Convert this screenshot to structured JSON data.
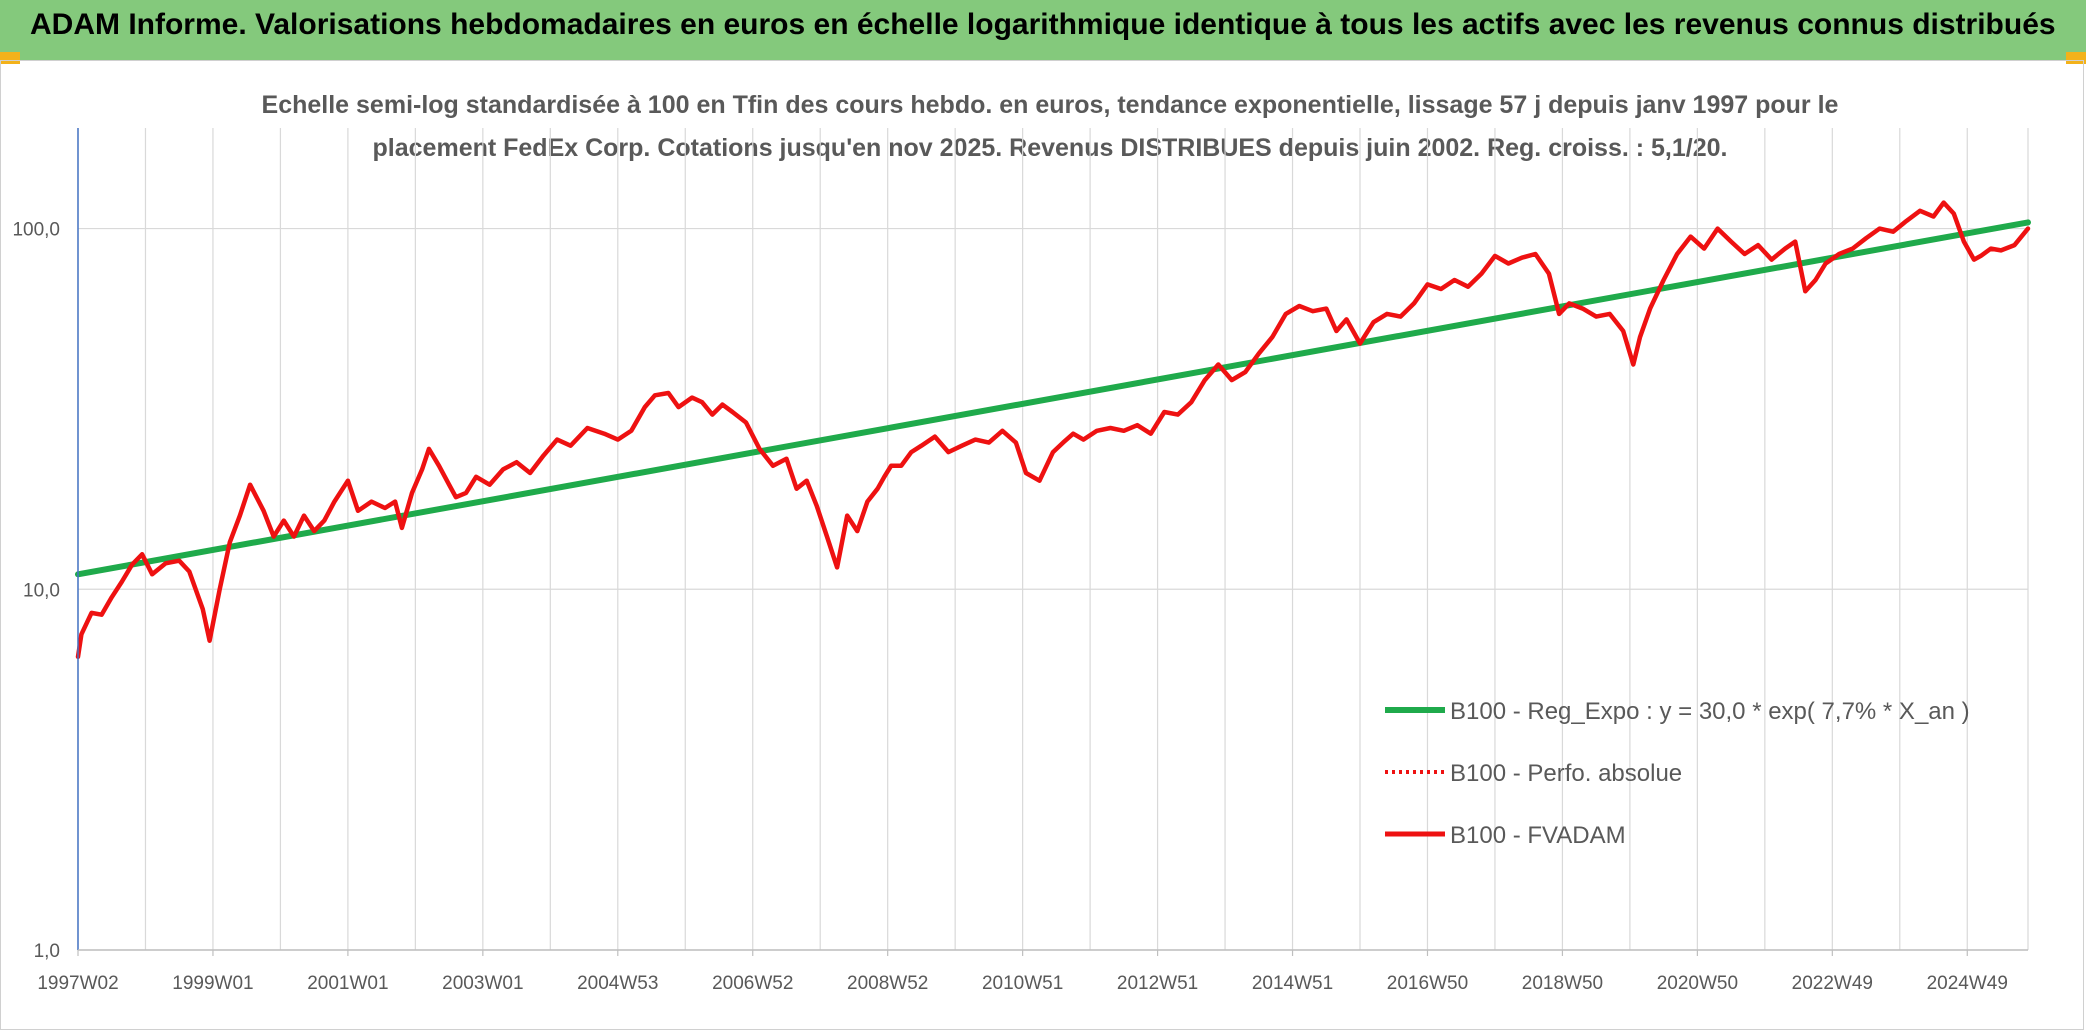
{
  "header": {
    "title": "ADAM Informe. Valorisations hebdomadaires en euros en échelle logarithmique identique à tous les actifs avec les revenus connus distribués"
  },
  "colors": {
    "banner": "#84c97c",
    "corner": "#f3b21a",
    "regression": "#1faa4b",
    "fvadam": "#ee1111",
    "axis": "#4472c4",
    "grid": "#d9d9d9"
  },
  "chart_data": {
    "type": "line",
    "subtitle_line1": "Echelle semi-log standardisée à 100 en Tfin des cours hebdo. en euros, tendance exponentielle, lissage 57 j depuis janv 1997 pour le",
    "subtitle_line2": "placement FedEx Corp. Cotations jusqu'en nov 2025. Revenus DISTRIBUES depuis juin 2002. Reg. croiss. : 5,1/20.",
    "y_scale": "log",
    "ylim": [
      1,
      190
    ],
    "xlim": [
      1997.0,
      2025.9
    ],
    "grid": "vertical",
    "legend_position": "right",
    "y_ticks": [
      {
        "value": 1,
        "label": "1,0"
      },
      {
        "value": 10,
        "label": "10,0"
      },
      {
        "value": 100,
        "label": "100,0"
      }
    ],
    "x_ticks": [
      {
        "value": 1997.0,
        "label": "1997W02"
      },
      {
        "value": 1999.0,
        "label": "1999W01"
      },
      {
        "value": 2001.0,
        "label": "2001W01"
      },
      {
        "value": 2003.0,
        "label": "2003W01"
      },
      {
        "value": 2005.0,
        "label": "2004W53"
      },
      {
        "value": 2007.0,
        "label": "2006W52"
      },
      {
        "value": 2009.0,
        "label": "2008W52"
      },
      {
        "value": 2011.0,
        "label": "2010W51"
      },
      {
        "value": 2013.0,
        "label": "2012W51"
      },
      {
        "value": 2015.0,
        "label": "2014W51"
      },
      {
        "value": 2017.0,
        "label": "2016W50"
      },
      {
        "value": 2019.0,
        "label": "2018W50"
      },
      {
        "value": 2021.0,
        "label": "2020W50"
      },
      {
        "value": 2023.0,
        "label": "2022W49"
      },
      {
        "value": 2025.0,
        "label": "2024W49"
      }
    ],
    "x_gridlines": [
      1997.0,
      1998.0,
      1999.0,
      2000.0,
      2001.0,
      2002.0,
      2003.0,
      2004.0,
      2005.0,
      2006.0,
      2007.0,
      2008.0,
      2009.0,
      2010.0,
      2011.0,
      2012.0,
      2013.0,
      2014.0,
      2015.0,
      2016.0,
      2017.0,
      2018.0,
      2019.0,
      2020.0,
      2021.0,
      2022.0,
      2023.0,
      2024.0,
      2025.0
    ],
    "series": [
      {
        "name": "B100 - Reg_Expo : y = 30,0 * exp( 7,7% *  X_an )",
        "style": "solid-thick",
        "color": "#1faa4b",
        "x": [
          1997.0,
          2025.9
        ],
        "y": [
          11.0,
          104.0
        ]
      },
      {
        "name": "B100 - Perfo. absolue",
        "style": "dotted",
        "color": "#ee1111",
        "x": [],
        "y": []
      },
      {
        "name": "B100 - FVADAM",
        "style": "solid",
        "color": "#ee1111",
        "x": [
          1997.0,
          1997.05,
          1997.2,
          1997.35,
          1997.5,
          1997.65,
          1997.8,
          1997.95,
          1998.1,
          1998.3,
          1998.5,
          1998.65,
          1998.85,
          1998.95,
          1999.1,
          1999.25,
          1999.4,
          1999.55,
          1999.75,
          1999.9,
          2000.05,
          2000.2,
          2000.35,
          2000.5,
          2000.65,
          2000.8,
          2001.0,
          2001.15,
          2001.35,
          2001.55,
          2001.7,
          2001.8,
          2001.95,
          2002.1,
          2002.2,
          2002.35,
          2002.5,
          2002.6,
          2002.75,
          2002.9,
          2003.1,
          2003.3,
          2003.5,
          2003.7,
          2003.9,
          2004.1,
          2004.3,
          2004.55,
          2004.8,
          2005.0,
          2005.2,
          2005.4,
          2005.55,
          2005.75,
          2005.9,
          2006.1,
          2006.25,
          2006.4,
          2006.55,
          2006.7,
          2006.9,
          2007.1,
          2007.3,
          2007.5,
          2007.65,
          2007.8,
          2007.95,
          2008.1,
          2008.25,
          2008.4,
          2008.55,
          2008.7,
          2008.85,
          2008.95,
          2009.05,
          2009.2,
          2009.35,
          2009.5,
          2009.7,
          2009.9,
          2010.1,
          2010.3,
          2010.5,
          2010.7,
          2010.9,
          2011.05,
          2011.25,
          2011.45,
          2011.6,
          2011.75,
          2011.9,
          2012.1,
          2012.3,
          2012.5,
          2012.7,
          2012.9,
          2013.1,
          2013.3,
          2013.5,
          2013.7,
          2013.9,
          2014.1,
          2014.3,
          2014.5,
          2014.7,
          2014.9,
          2015.1,
          2015.3,
          2015.5,
          2015.65,
          2015.8,
          2016.0,
          2016.2,
          2016.4,
          2016.6,
          2016.8,
          2017.0,
          2017.2,
          2017.4,
          2017.6,
          2017.8,
          2018.0,
          2018.2,
          2018.4,
          2018.6,
          2018.8,
          2018.95,
          2019.1,
          2019.3,
          2019.5,
          2019.7,
          2019.9,
          2020.05,
          2020.15,
          2020.3,
          2020.5,
          2020.7,
          2020.9,
          2021.1,
          2021.3,
          2021.5,
          2021.7,
          2021.9,
          2022.1,
          2022.3,
          2022.45,
          2022.6,
          2022.75,
          2022.9,
          2023.1,
          2023.3,
          2023.5,
          2023.7,
          2023.9,
          2024.1,
          2024.3,
          2024.5,
          2024.65,
          2024.8,
          2024.95,
          2025.1,
          2025.2,
          2025.35,
          2025.5,
          2025.7,
          2025.9
        ],
        "y": [
          6.5,
          7.5,
          8.6,
          8.5,
          9.5,
          10.5,
          11.7,
          12.5,
          11.0,
          11.8,
          12.0,
          11.2,
          8.8,
          7.2,
          10.0,
          13.5,
          16.0,
          19.5,
          16.5,
          14.0,
          15.5,
          14.0,
          16.0,
          14.5,
          15.5,
          17.5,
          20.0,
          16.5,
          17.5,
          16.8,
          17.5,
          14.8,
          18.5,
          21.5,
          24.5,
          22.0,
          19.5,
          18.0,
          18.5,
          20.5,
          19.5,
          21.5,
          22.5,
          21.0,
          23.5,
          26.0,
          25.0,
          28.0,
          27.0,
          26.0,
          27.5,
          32.0,
          34.5,
          35.0,
          32.0,
          34.0,
          33.0,
          30.5,
          32.5,
          31.0,
          29.0,
          24.5,
          22.0,
          23.0,
          19.0,
          20.0,
          17.0,
          14.0,
          11.5,
          16.0,
          14.5,
          17.5,
          19.0,
          20.5,
          22.0,
          22.0,
          24.0,
          25.0,
          26.5,
          24.0,
          25.0,
          26.0,
          25.5,
          27.5,
          25.5,
          21.0,
          20.0,
          24.0,
          25.5,
          27.0,
          26.0,
          27.5,
          28.0,
          27.5,
          28.5,
          27.0,
          31.0,
          30.5,
          33.0,
          38.0,
          42.0,
          38.0,
          40.0,
          45.0,
          50.0,
          58.0,
          61.0,
          59.0,
          60.0,
          52.0,
          56.0,
          48.0,
          55.0,
          58.0,
          57.0,
          62.0,
          70.0,
          68.0,
          72.0,
          69.0,
          75.0,
          84.0,
          80.0,
          83.0,
          85.0,
          75.0,
          58.0,
          62.0,
          60.0,
          57.0,
          58.0,
          52.0,
          42.0,
          50.0,
          60.0,
          72.0,
          85.0,
          95.0,
          88.0,
          100.0,
          92.0,
          85.0,
          90.0,
          82.0,
          88.0,
          92.0,
          67.0,
          72.0,
          80.0,
          85.0,
          88.0,
          94.0,
          100.0,
          98.0,
          105.0,
          112.0,
          108.0,
          118.0,
          110.0,
          92.0,
          82.0,
          84.0,
          88.0,
          87.0,
          90.0,
          100.0
        ]
      }
    ]
  }
}
